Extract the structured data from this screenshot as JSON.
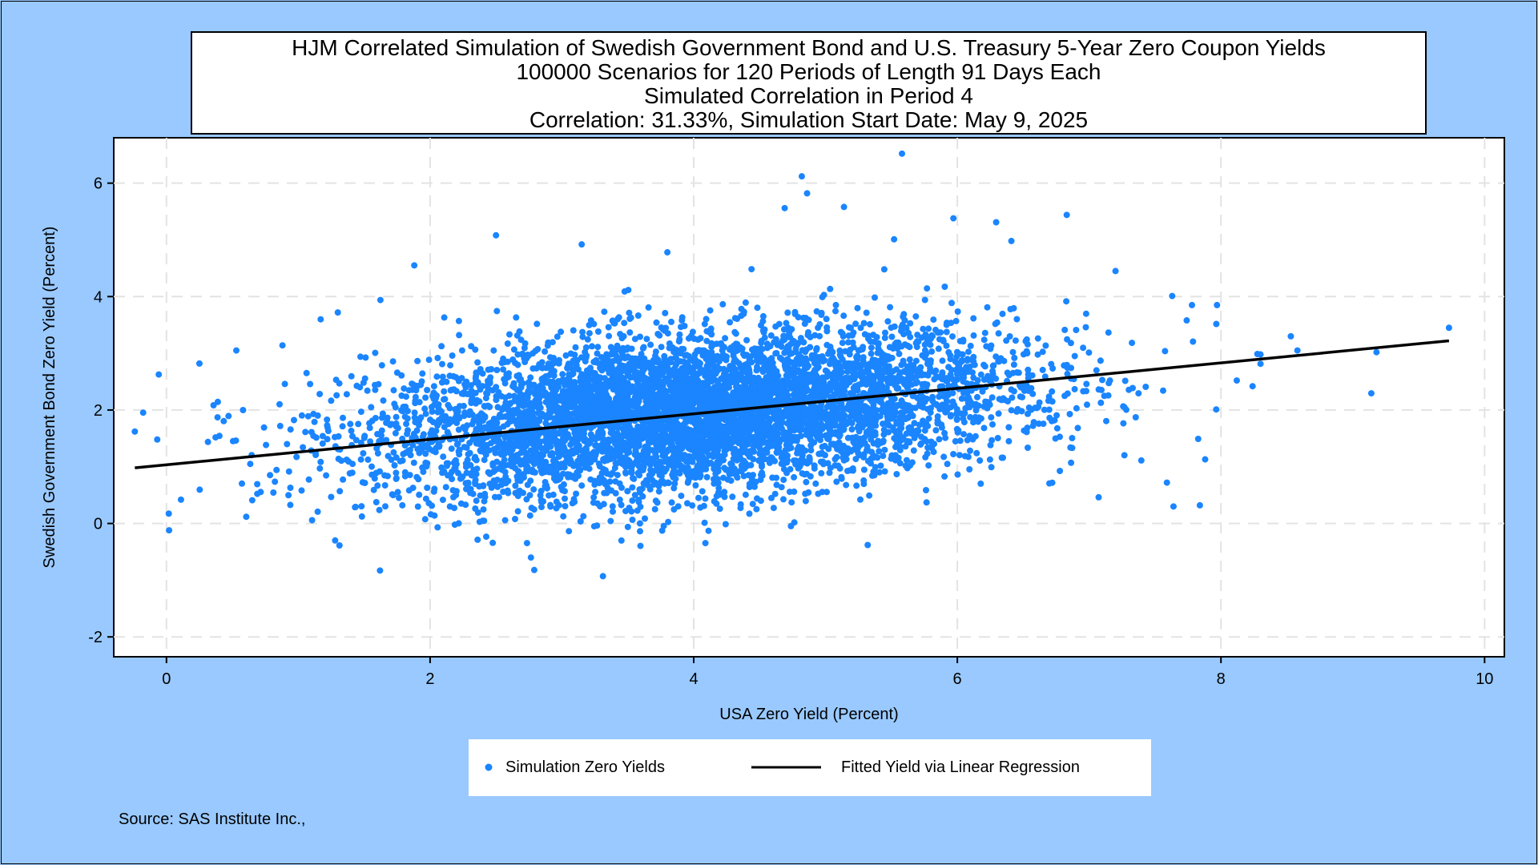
{
  "chart_data": {
    "type": "scatter",
    "title_lines": [
      "HJM Correlated Simulation of Swedish Government Bond and U.S. Treasury 5-Year Zero Coupon Yields",
      "100000 Scenarios for 120 Periods of Length 91 Days Each",
      "Simulated Correlation in Period 4",
      "Correlation: 31.33%,  Simulation Start Date:        May 9, 2025"
    ],
    "xlabel": "USA Zero Yield (Percent)",
    "ylabel": "Swedish Government Bond Zero Yield (Percent)",
    "xlim": [
      -0.4,
      10.15
    ],
    "ylim": [
      -2.35,
      6.8
    ],
    "x_ticks": [
      0,
      2,
      4,
      6,
      8,
      10
    ],
    "y_ticks": [
      -2,
      0,
      2,
      4,
      6
    ],
    "grid": true,
    "legend_position": "bottom",
    "series": [
      {
        "name": "Simulation Zero Yields",
        "kind": "scatter",
        "color": "#1a85ff",
        "scenario_count": 100000,
        "cloud_center": [
          4.0,
          1.95
        ],
        "cloud_sd": [
          1.2,
          0.72
        ],
        "correlation": 0.3133,
        "points": [
          [
            -0.24,
            1.62
          ],
          [
            -0.07,
            1.48
          ],
          [
            0.02,
            -0.12
          ],
          [
            0.11,
            0.42
          ],
          [
            0.25,
            2.82
          ],
          [
            0.53,
            3.05
          ],
          [
            0.88,
            3.14
          ],
          [
            1.3,
            3.72
          ],
          [
            1.62,
            -0.83
          ],
          [
            1.88,
            4.55
          ],
          [
            2.5,
            5.08
          ],
          [
            2.79,
            -0.82
          ],
          [
            3.15,
            4.92
          ],
          [
            3.8,
            4.78
          ],
          [
            4.82,
            6.12
          ],
          [
            4.86,
            5.82
          ],
          [
            4.69,
            5.56
          ],
          [
            5.14,
            5.58
          ],
          [
            5.58,
            6.52
          ],
          [
            5.52,
            5.01
          ],
          [
            5.97,
            5.38
          ],
          [
            6.41,
            4.98
          ],
          [
            6.83,
            5.44
          ],
          [
            5.32,
            -0.38
          ],
          [
            7.2,
            4.45
          ],
          [
            7.63,
            4.01
          ],
          [
            7.78,
            3.85
          ],
          [
            7.97,
            3.85
          ],
          [
            8.12,
            2.52
          ],
          [
            8.24,
            2.42
          ],
          [
            8.53,
            3.3
          ],
          [
            8.58,
            3.05
          ],
          [
            9.18,
            3.02
          ],
          [
            9.73,
            3.45
          ],
          [
            7.59,
            0.72
          ],
          [
            7.64,
            0.3
          ],
          [
            7.84,
            0.32
          ],
          [
            7.88,
            1.13
          ],
          [
            7.74,
            3.58
          ],
          [
            8.3,
            2.98
          ]
        ]
      },
      {
        "name": "Fitted Yield via Linear Regression",
        "kind": "line",
        "color": "#000000",
        "x": [
          -0.24,
          9.73
        ],
        "y": [
          0.98,
          3.22
        ]
      }
    ],
    "source": "Source: SAS Institute Inc.,"
  }
}
